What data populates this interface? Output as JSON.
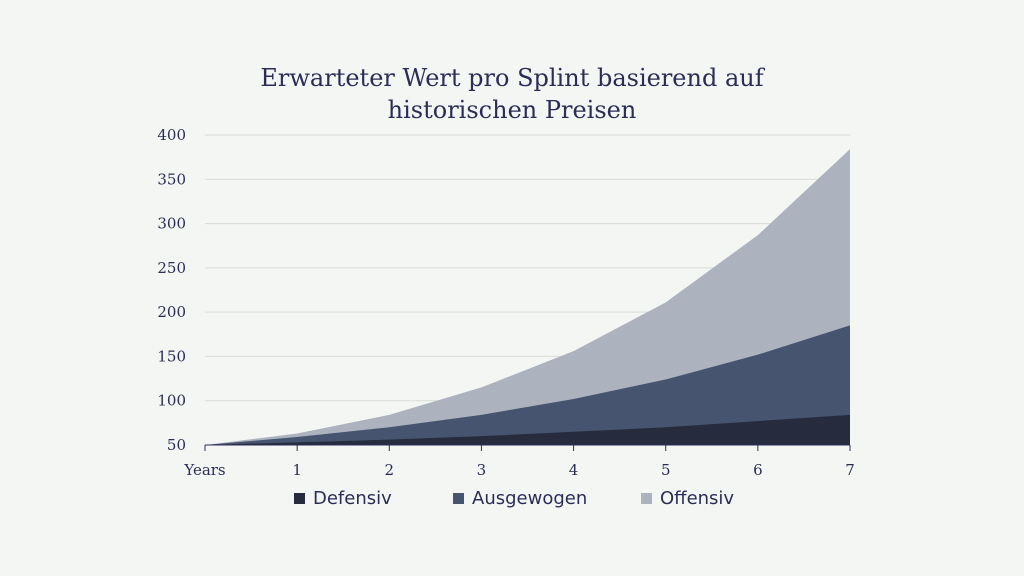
{
  "chart_data": {
    "type": "area",
    "stacked": false,
    "title_lines": [
      "Erwarteter Wert pro Splint basierend auf",
      "historischen Preisen"
    ],
    "x": [
      0,
      1,
      2,
      3,
      4,
      5,
      6,
      7
    ],
    "x_tick_labels": [
      "Years",
      "1",
      "2",
      "3",
      "4",
      "5",
      "6",
      "7"
    ],
    "ylim": [
      50,
      400
    ],
    "y_ticks": [
      50,
      100,
      150,
      200,
      250,
      300,
      350,
      400
    ],
    "grid": true,
    "legend_position": "bottom",
    "series": [
      {
        "name": "Offensiv",
        "color": "#adb2bf",
        "values": [
          50,
          63,
          84,
          115,
          156,
          211,
          287,
          384
        ]
      },
      {
        "name": "Ausgewogen",
        "color": "#46546f",
        "values": [
          50,
          59,
          70,
          84,
          102,
          124,
          152,
          185
        ]
      },
      {
        "name": "Defensiv",
        "color": "#262c3e",
        "values": [
          50,
          53,
          56,
          60,
          65,
          70,
          77,
          84
        ]
      }
    ],
    "legend": [
      {
        "name": "Defensiv",
        "color": "#262c3e"
      },
      {
        "name": "Ausgewogen",
        "color": "#46546f"
      },
      {
        "name": "Offensiv",
        "color": "#adb2bf"
      }
    ]
  }
}
